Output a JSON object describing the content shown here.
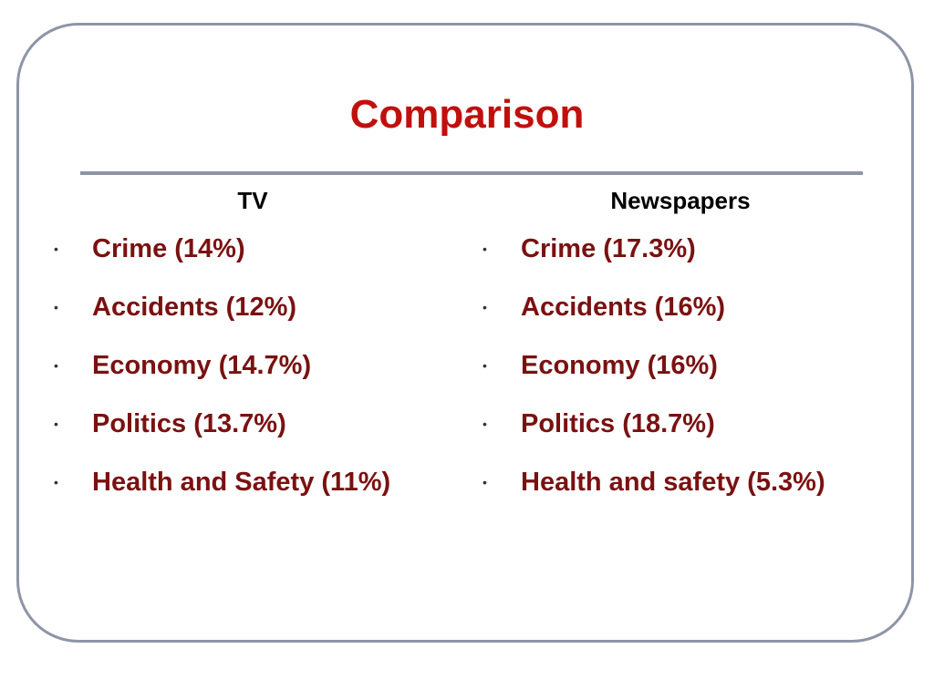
{
  "slide": {
    "title": "Comparison",
    "colors": {
      "title": "#c0100e",
      "items": "#7a1111",
      "frame": "#8d95a6"
    }
  },
  "columns": [
    {
      "heading": "TV",
      "items": [
        "Crime (14%)",
        "Accidents (12%)",
        "Economy (14.7%)",
        "Politics (13.7%)",
        "Health and Safety (11%)"
      ]
    },
    {
      "heading": "Newspapers",
      "items": [
        "Crime (17.3%)",
        "Accidents (16%)",
        "Economy (16%)",
        "Politics (18.7%)",
        "Health and safety (5.3%)"
      ]
    }
  ],
  "bullet_glyph": "•"
}
